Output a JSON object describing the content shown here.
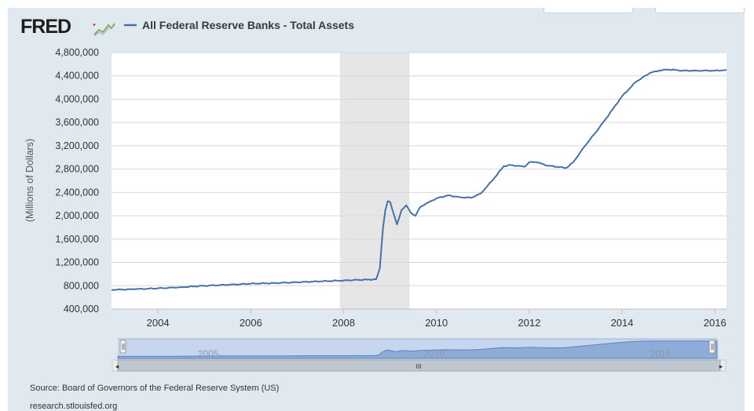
{
  "legend": {
    "series_name": "All Federal Reserve Banks - Total Assets"
  },
  "footer": {
    "source": "Source: Board of Governors of the Federal Reserve System (US)",
    "site": "research.stlouisfed.org"
  },
  "navigator": {
    "labels": [
      "2005",
      "2010",
      "2015"
    ],
    "left_arrow": "◂",
    "right_arrow": "▸",
    "grip": "III"
  },
  "colors": {
    "series": "#4572a7",
    "recession_shade": "#e6e6e6",
    "background": "#e1e9f0",
    "navigator_fill": "#7b9ed0",
    "navigator_band": "#c7d6ef"
  },
  "icons": {
    "logo": "fred-logo-icon",
    "legend": "legend-line-icon"
  },
  "chart_data": {
    "type": "line",
    "title": "",
    "xlabel": "",
    "ylabel": "(Millions of Dollars)",
    "xlim": [
      2003.0,
      2016.25
    ],
    "ylim": [
      400000,
      4800000
    ],
    "y_ticks": [
      400000,
      800000,
      1200000,
      1600000,
      2000000,
      2400000,
      2800000,
      3200000,
      3600000,
      4000000,
      4400000,
      4800000
    ],
    "y_tick_labels": [
      "400,000",
      "800,000",
      "1,200,000",
      "1,600,000",
      "2,000,000",
      "2,400,000",
      "2,800,000",
      "3,200,000",
      "3,600,000",
      "4,000,000",
      "4,400,000",
      "4,800,000"
    ],
    "x_ticks": [
      2004,
      2006,
      2008,
      2010,
      2012,
      2014,
      2016
    ],
    "x_tick_labels": [
      "2004",
      "2006",
      "2008",
      "2010",
      "2012",
      "2014",
      "2016"
    ],
    "grid": true,
    "legend_position": "top-left",
    "recession": [
      2007.92,
      2009.42
    ],
    "series": [
      {
        "name": "All Federal Reserve Banks - Total Assets",
        "x": [
          2003.0,
          2003.5,
          2004.0,
          2004.5,
          2005.0,
          2005.5,
          2006.0,
          2006.5,
          2007.0,
          2007.5,
          2008.0,
          2008.3,
          2008.5,
          2008.7,
          2008.78,
          2008.85,
          2008.9,
          2008.95,
          2009.0,
          2009.15,
          2009.25,
          2009.35,
          2009.45,
          2009.55,
          2009.65,
          2009.8,
          2010.0,
          2010.25,
          2010.5,
          2010.75,
          2010.95,
          2011.2,
          2011.45,
          2011.6,
          2011.9,
          2012.0,
          2012.15,
          2012.4,
          2012.8,
          2012.95,
          2013.2,
          2013.5,
          2013.8,
          2014.0,
          2014.3,
          2014.6,
          2014.8,
          2015.0,
          2015.3,
          2015.6,
          2016.0,
          2016.25
        ],
        "values": [
          730000,
          740000,
          755000,
          775000,
          800000,
          815000,
          835000,
          845000,
          860000,
          875000,
          890000,
          900000,
          905000,
          910000,
          1100000,
          1800000,
          2100000,
          2250000,
          2240000,
          1850000,
          2100000,
          2180000,
          2050000,
          2000000,
          2150000,
          2220000,
          2300000,
          2350000,
          2320000,
          2310000,
          2380000,
          2600000,
          2850000,
          2870000,
          2840000,
          2920000,
          2920000,
          2860000,
          2820000,
          2920000,
          3200000,
          3500000,
          3830000,
          4050000,
          4300000,
          4450000,
          4490000,
          4510000,
          4490000,
          4490000,
          4490000,
          4500000
        ]
      }
    ]
  }
}
